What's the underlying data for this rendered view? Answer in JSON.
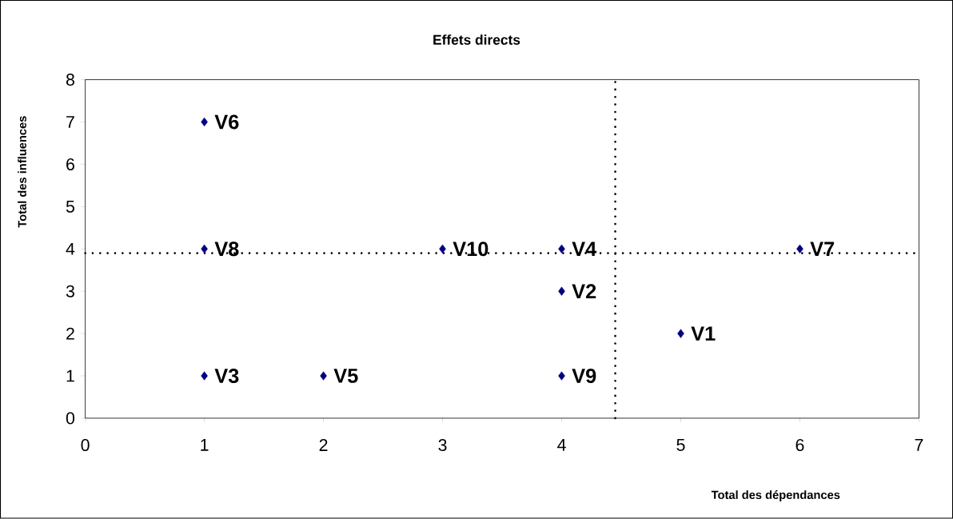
{
  "chart_data": {
    "type": "scatter",
    "title": "Effets directs",
    "xlabel": "Total des dépendances",
    "ylabel": "Total des influences",
    "x": [
      5,
      4,
      1,
      4,
      2,
      1,
      6,
      1,
      4,
      3
    ],
    "series": [
      {
        "color": "#000080",
        "values": [
          2,
          3,
          1,
          4,
          1,
          7,
          4,
          4,
          1,
          4
        ]
      }
    ],
    "marker": "diamond",
    "grid": false,
    "xlim": [
      0,
      7
    ],
    "ylim": [
      0,
      8
    ],
    "xticks": [
      0,
      1,
      2,
      3,
      4,
      5,
      6,
      7
    ],
    "yticks": [
      0,
      1,
      2,
      3,
      4,
      5,
      6,
      7,
      8
    ],
    "ref_lines": [
      {
        "axis": "x",
        "value": 4.45,
        "line_style": "dotted",
        "color": "#000000"
      },
      {
        "axis": "y",
        "value": 3.9,
        "line_style": "dotted",
        "color": "#000000"
      }
    ],
    "annotations": [
      {
        "text": "V1",
        "x": 5,
        "y": 2
      },
      {
        "text": "V2",
        "x": 4,
        "y": 3
      },
      {
        "text": "V3",
        "x": 1,
        "y": 1
      },
      {
        "text": "V4",
        "x": 4,
        "y": 4
      },
      {
        "text": "V5",
        "x": 2,
        "y": 1
      },
      {
        "text": "V6",
        "x": 1,
        "y": 7
      },
      {
        "text": "V7",
        "x": 6,
        "y": 4
      },
      {
        "text": "V8",
        "x": 1,
        "y": 4
      },
      {
        "text": "V9",
        "x": 4,
        "y": 1
      },
      {
        "text": "V10",
        "x": 3,
        "y": 4
      }
    ]
  }
}
